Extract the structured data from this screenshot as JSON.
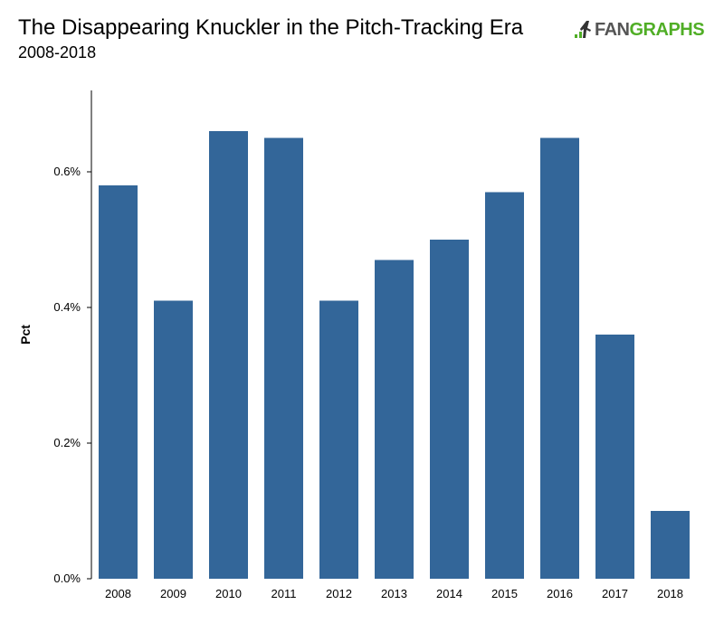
{
  "title": "The Disappearing Knuckler in the Pitch-Tracking Era",
  "subtitle": "2008-2018",
  "logo": {
    "icon": "fangraphs-logo-icon",
    "text_fan": "FAN",
    "text_graphs": "GRAPHS",
    "fan_color": "#555555",
    "graphs_color": "#50ae26"
  },
  "chart_data": {
    "type": "bar",
    "categories": [
      "2008",
      "2009",
      "2010",
      "2011",
      "2012",
      "2013",
      "2014",
      "2015",
      "2016",
      "2017",
      "2018"
    ],
    "values": [
      0.58,
      0.41,
      0.66,
      0.65,
      0.41,
      0.47,
      0.5,
      0.57,
      0.65,
      0.36,
      0.1
    ],
    "xlabel": "",
    "ylabel": "Pct",
    "ylim": [
      0,
      0.72
    ],
    "yticks": [
      0,
      0.2,
      0.4,
      0.6
    ],
    "ytick_labels": [
      "0.0%",
      "0.2%",
      "0.4%",
      "0.6%"
    ],
    "bar_color": "#336699",
    "grid": false,
    "legend": "none"
  }
}
